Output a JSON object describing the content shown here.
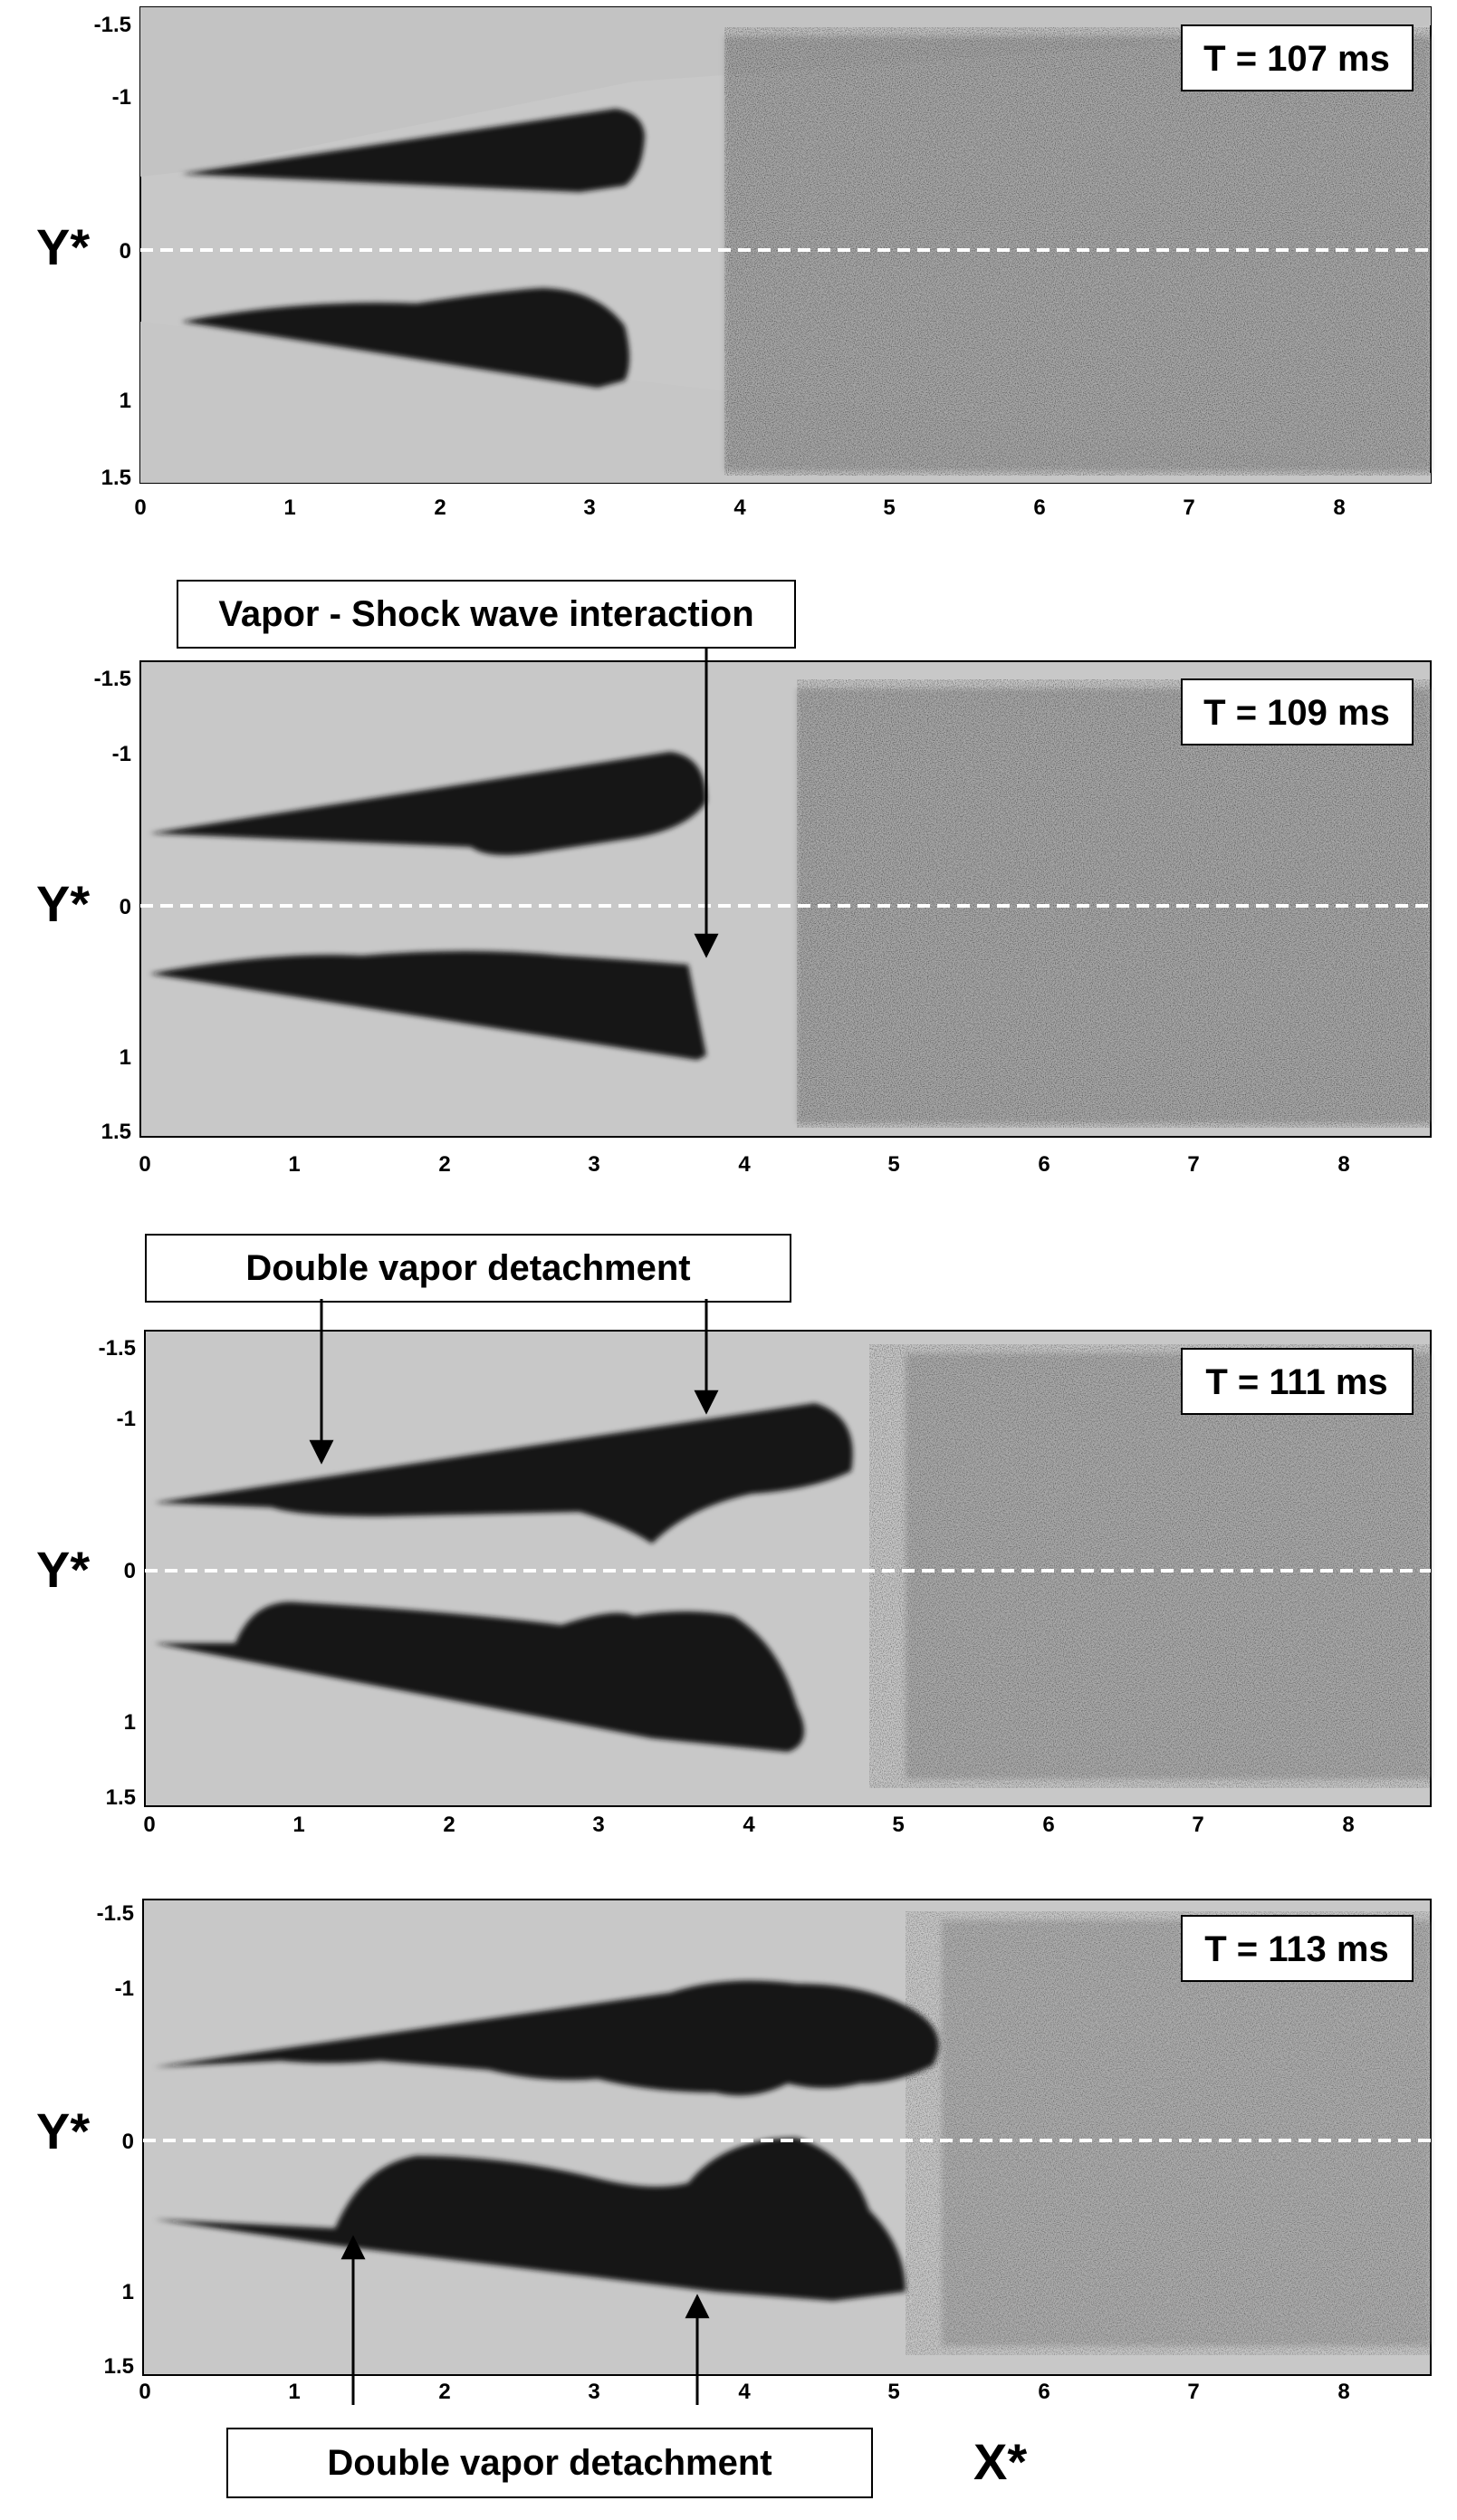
{
  "figure": {
    "axes": {
      "x_label": "X*",
      "y_label": "Y*",
      "x_ticks": [
        "0",
        "1",
        "2",
        "3",
        "4",
        "5",
        "6",
        "7",
        "8"
      ],
      "y_ticks": [
        "-1.5",
        "-1",
        "0",
        "1",
        "1.5"
      ]
    },
    "panels": [
      {
        "time_label": "T = 107 ms"
      },
      {
        "time_label": "T = 109 ms"
      },
      {
        "time_label": "T = 111 ms"
      },
      {
        "time_label": "T = 113 ms"
      }
    ],
    "annotations": [
      {
        "text": "Vapor - Shock wave interaction"
      },
      {
        "text": "Double vapor detachment"
      },
      {
        "text": "Double vapor detachment"
      }
    ],
    "colors": {
      "background_field": "#c8c8c8",
      "vapor": "#151515",
      "centerline": "#ffffff"
    }
  }
}
